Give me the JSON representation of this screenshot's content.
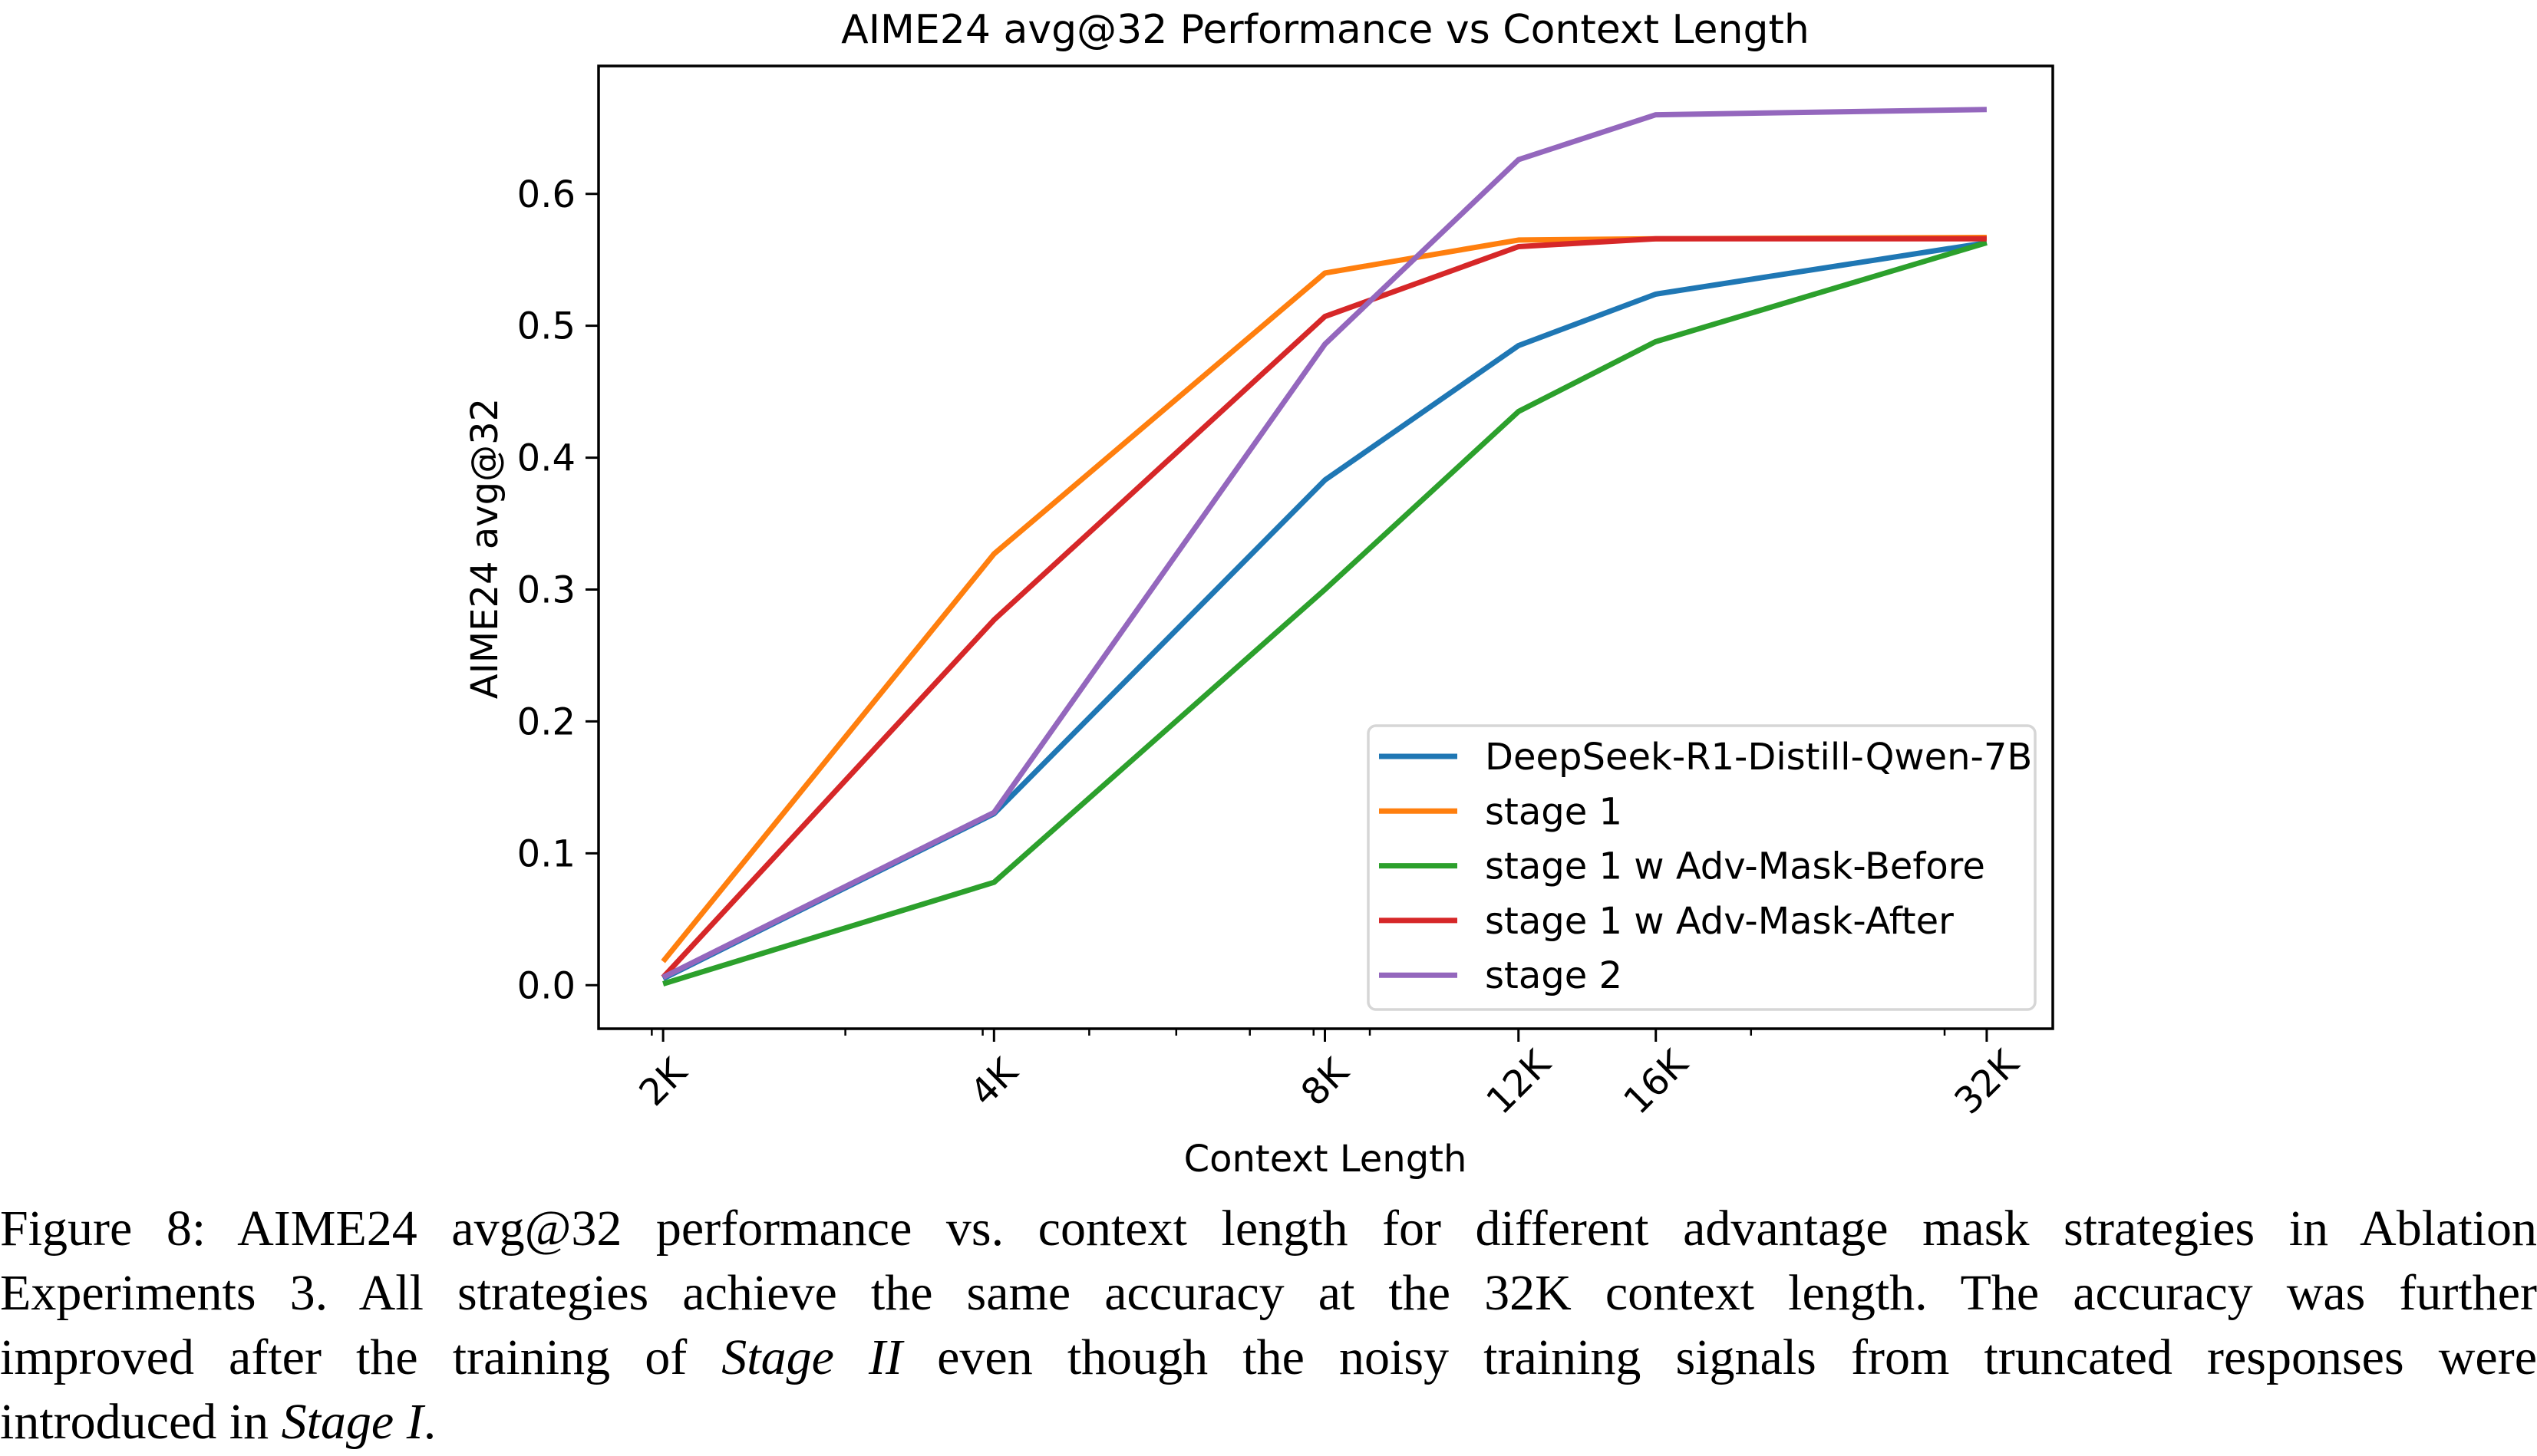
{
  "chart_data": {
    "type": "line",
    "title": "AIME24 avg@32 Performance vs Context Length",
    "xlabel": "Context Length",
    "ylabel": "AIME24 avg@32",
    "x_scale": "log",
    "x": [
      2048,
      4096,
      8192,
      12288,
      16384,
      32768
    ],
    "categories": [
      "2K",
      "4K",
      "8K",
      "12K",
      "16K",
      "32K"
    ],
    "xlim": [
      1789,
      37631
    ],
    "ylim": [
      -0.033,
      0.697
    ],
    "y_ticks": [
      0.0,
      0.1,
      0.2,
      0.3,
      0.4,
      0.5,
      0.6
    ],
    "y_tick_labels": [
      "0.0",
      "0.1",
      "0.2",
      "0.3",
      "0.4",
      "0.5",
      "0.6"
    ],
    "x_minor_ticks": [
      2000,
      3000,
      4000,
      5000,
      6000,
      7000,
      8000,
      9000,
      20000,
      30000
    ],
    "grid": false,
    "legend_position": "lower-right",
    "series": [
      {
        "name": "DeepSeek-R1-Distill-Qwen-7B",
        "color": "#1f77b4",
        "values": [
          0.005,
          0.13,
          0.383,
          0.485,
          0.524,
          0.563
        ]
      },
      {
        "name": "stage 1",
        "color": "#ff7f0e",
        "values": [
          0.018,
          0.327,
          0.54,
          0.565,
          0.566,
          0.567
        ]
      },
      {
        "name": "stage 1 w Adv-Mask-Before",
        "color": "#2ca02c",
        "values": [
          0.001,
          0.078,
          0.3,
          0.435,
          0.488,
          0.563
        ]
      },
      {
        "name": "stage 1 w Adv-Mask-After",
        "color": "#d62728",
        "values": [
          0.006,
          0.277,
          0.507,
          0.56,
          0.566,
          0.566
        ]
      },
      {
        "name": "stage 2",
        "color": "#9467bd",
        "values": [
          0.006,
          0.131,
          0.486,
          0.626,
          0.66,
          0.664
        ]
      }
    ]
  },
  "caption": {
    "lines": [
      [
        {
          "t": "Figure 8: AIME24 avg@32 performance vs. context length for different advantage mask strategies in Ablation"
        }
      ],
      [
        {
          "t": "Experiments 3. All strategies achieve the same accuracy at the 32K context length. The accuracy was further"
        }
      ],
      [
        {
          "t": "improved after the training of "
        },
        {
          "t": "Stage II",
          "i": true
        },
        {
          "t": " even though the noisy training signals from truncated responses were"
        }
      ],
      [
        {
          "t": "introduced in "
        },
        {
          "t": "Stage I",
          "i": true
        },
        {
          "t": "."
        }
      ]
    ]
  }
}
